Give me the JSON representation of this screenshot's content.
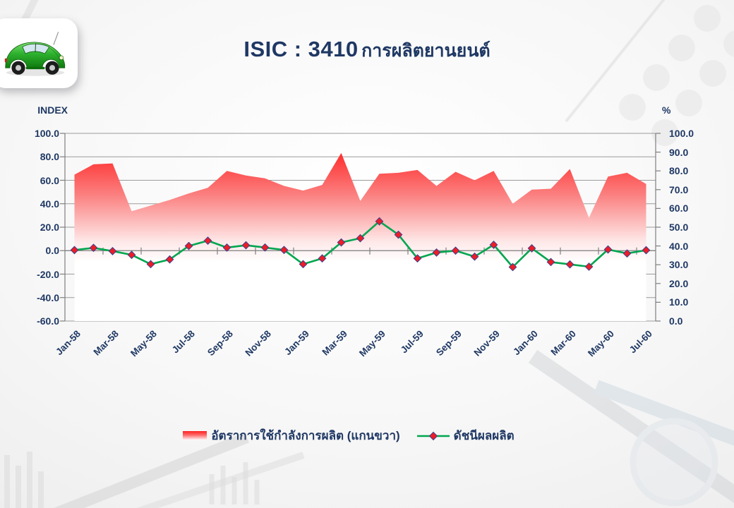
{
  "header": {
    "title_code": "ISIC : 3410",
    "title_name": "การผลิตยานยนต์"
  },
  "legend": {
    "items": [
      {
        "label": "อัตราการใช้กำลังการผลิต (แกนขวา)",
        "swatch": "red-gradient-area"
      },
      {
        "label": "ดัชนีผลผลิต",
        "swatch": "green-line-red-diamond"
      }
    ]
  },
  "colors": {
    "title_navy": "#1f3864",
    "area_red_top": "#ff2121",
    "line_green": "#00a64f",
    "marker_red": "#ee1c25",
    "marker_edge": "#3f3f8f",
    "gridline": "#9b9b9b",
    "axis_line": "#7f7f7f"
  },
  "chart_data": {
    "type": "combo",
    "title": "ISIC : 3410 การผลิตยานยนต์",
    "grid": "horizontal",
    "legend_position": "bottom",
    "x": [
      "Jan-58",
      "Feb-58",
      "Mar-58",
      "Apr-58",
      "May-58",
      "Jun-58",
      "Jul-58",
      "Aug-58",
      "Sep-58",
      "Oct-58",
      "Nov-58",
      "Dec-58",
      "Jan-59",
      "Feb-59",
      "Mar-59",
      "Apr-59",
      "May-59",
      "Jun-59",
      "Jul-59",
      "Aug-59",
      "Sep-59",
      "Oct-59",
      "Nov-59",
      "Dec-59",
      "Jan-60",
      "Feb-60",
      "Mar-60",
      "Apr-60",
      "May-60",
      "Jun-60",
      "Jul-60"
    ],
    "x_tick_labels": [
      "Jan-58",
      "Mar-58",
      "May-58",
      "Jul-58",
      "Sep-58",
      "Nov-58",
      "Jan-59",
      "Mar-59",
      "May-59",
      "Jul-59",
      "Sep-59",
      "Nov-59",
      "Jan-60",
      "Mar-60",
      "May-60",
      "Jul-60"
    ],
    "left_axis": {
      "label": "INDEX",
      "min": -60,
      "max": 100,
      "step": 20,
      "ticks": [
        "100.0",
        "80.0",
        "60.0",
        "40.0",
        "20.0",
        "0.0",
        "-20.0",
        "-40.0",
        "-60.0"
      ]
    },
    "right_axis": {
      "label": "%",
      "min": 0,
      "max": 100,
      "step": 10,
      "ticks": [
        "100.0",
        "90.0",
        "80.0",
        "70.0",
        "60.0",
        "50.0",
        "40.0",
        "30.0",
        "20.0",
        "10.0",
        "0.0"
      ]
    },
    "series": [
      {
        "name": "อัตราการใช้กำลังการผลิต (แกนขวา)",
        "type": "area",
        "axis": "right",
        "style": "red-to-white vertical gradient fill",
        "values": [
          78,
          83.5,
          84,
          58.5,
          61.5,
          64.5,
          68,
          71,
          80,
          77.5,
          76,
          72,
          69.5,
          72.5,
          89.5,
          64,
          78.5,
          79,
          80.5,
          72,
          79.5,
          75,
          80,
          62.5,
          70,
          70.5,
          81,
          55,
          77,
          79,
          73
        ]
      },
      {
        "name": "ดัชนีผลผลิต",
        "type": "line",
        "axis": "left",
        "marker": "diamond",
        "values": [
          0.5,
          2.4,
          -0.4,
          -3.6,
          -11.5,
          -7.5,
          4,
          8.5,
          2.6,
          4.6,
          2.7,
          0.6,
          -11.5,
          -6.6,
          7,
          10.6,
          25,
          13.6,
          -6.6,
          -1.6,
          0,
          -5.1,
          5,
          -14,
          2,
          -9.7,
          -11.7,
          -13.7,
          1,
          -2.4,
          0.4
        ]
      }
    ]
  }
}
